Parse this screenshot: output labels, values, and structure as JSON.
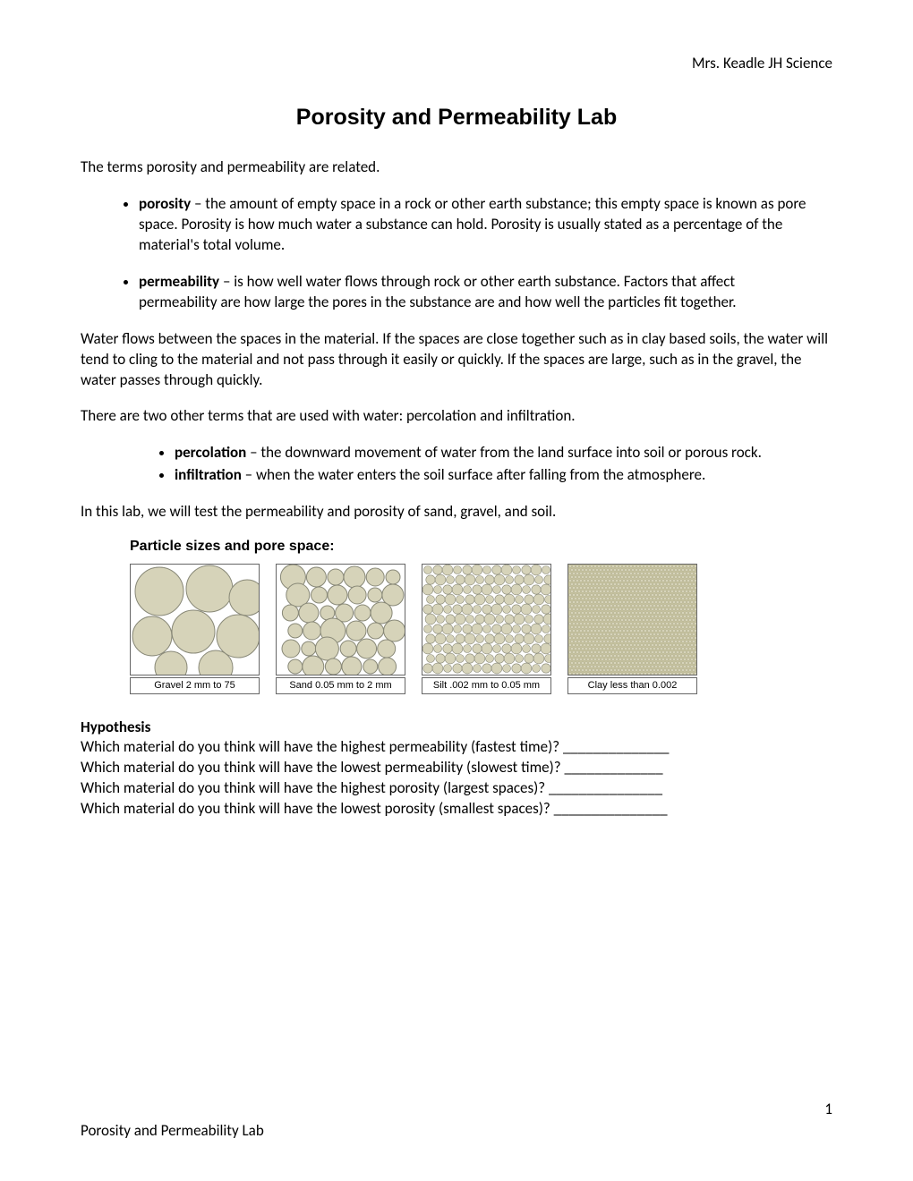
{
  "header": "Mrs. Keadle   JH Science",
  "title": "Porosity and Permeability Lab",
  "intro": "The terms porosity and permeability are related.",
  "defs": [
    {
      "term": "porosity",
      "text": " – the amount of empty space in a rock or other earth substance; this empty space is known as pore space. Porosity is how much water a substance can hold. Porosity is usually stated as a percentage of the material's total volume."
    },
    {
      "term": "permeability",
      "text": " – is how well water flows through rock or other earth substance. Factors that affect permeability are how large the pores in the substance are and how well the particles fit together."
    }
  ],
  "para_water": "Water flows between the spaces in the material. If the spaces are close together such as in clay based soils, the water will tend to cling to the material and not pass through it easily or quickly. If the spaces are large, such as in the gravel, the water passes through quickly.",
  "para_terms": "There are two other terms that are used with water: percolation and infiltration.",
  "defs2": [
    {
      "term": "percolation",
      "text": " – the downward movement of water from the land surface into soil or porous rock."
    },
    {
      "term": "infiltration",
      "text": " – when the water enters the soil surface after falling from the atmosphere."
    }
  ],
  "para_lab": "In this lab, we will test the permeability and porosity of sand, gravel, and soil.",
  "particle_heading": "Particle sizes and pore space:",
  "diagrams": {
    "particle_fill": "#d6d3b9",
    "particle_stroke": "#888877",
    "bg": "#ffffff",
    "boxes": [
      {
        "label": "Gravel 2 mm to 75",
        "type": "gravel"
      },
      {
        "label": "Sand 0.05 mm to 2 mm",
        "type": "sand"
      },
      {
        "label": "Silt .002 mm to 0.05 mm",
        "type": "silt"
      },
      {
        "label": "Clay less than 0.002",
        "type": "clay"
      }
    ]
  },
  "hypothesis_heading": "Hypothesis",
  "questions": [
    "Which material do you think will have the highest permeability (fastest time)? ______________",
    "Which material do you think will have the lowest permeability (slowest time)? _____________",
    "Which material do you think will have the highest porosity (largest spaces)? _______________",
    "Which material do you think will have the lowest porosity (smallest spaces)? _______________"
  ],
  "footer": "Porosity and Permeability Lab",
  "page_number": "1"
}
